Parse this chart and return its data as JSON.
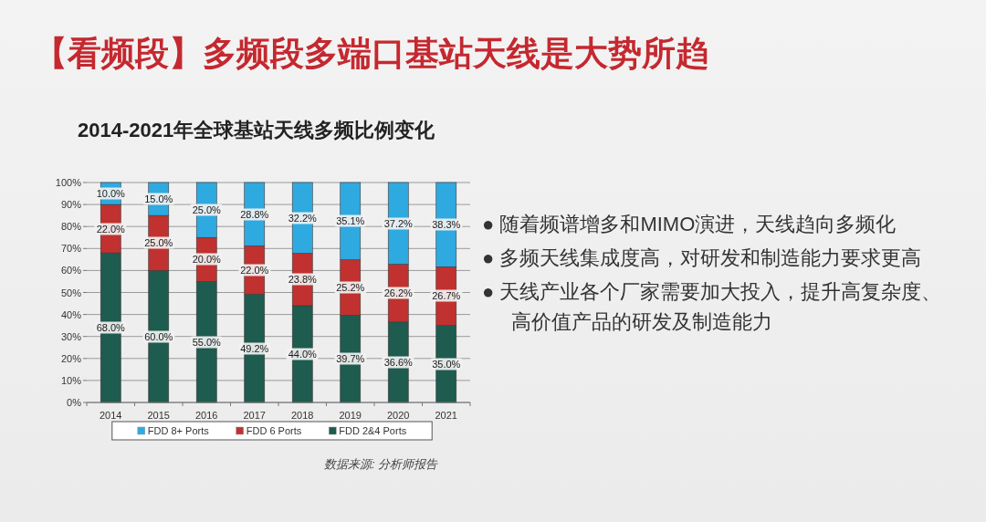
{
  "chart_data": {
    "type": "bar",
    "stacked": true,
    "title": "【看频段】多频段多端口基站天线是大势所趋",
    "subtitle": "2014-2021年全球基站天线多频比例变化",
    "categories": [
      "2014",
      "2015",
      "2016",
      "2017",
      "2018",
      "2019",
      "2020",
      "2021"
    ],
    "series": [
      {
        "name": "FDD 2&4 Ports",
        "color": "#1d5c4f",
        "values": [
          68.0,
          60.0,
          55.0,
          49.2,
          44.0,
          39.7,
          36.6,
          35.0
        ],
        "value_labels": [
          "68.0%",
          "60.0%",
          "55.0%",
          "49.2%",
          "44.0%",
          "39.7%",
          "36.6%",
          "35.0%"
        ]
      },
      {
        "name": "FDD 6 Ports",
        "color": "#c1312f",
        "values": [
          22.0,
          25.0,
          20.0,
          22.0,
          23.8,
          25.2,
          26.2,
          26.7
        ],
        "value_labels": [
          "22.0%",
          "25.0%",
          "20.0%",
          "22.0%",
          "23.8%",
          "25.2%",
          "26.2%",
          "26.7%"
        ]
      },
      {
        "name": "FDD 8+ Ports",
        "color": "#2eaae1",
        "values": [
          10.0,
          15.0,
          25.0,
          28.8,
          32.2,
          35.1,
          37.2,
          38.3
        ],
        "value_labels": [
          "10.0%",
          "15.0%",
          "25.0%",
          "28.8%",
          "32.2%",
          "35.1%",
          "37.2%",
          "38.3%"
        ]
      }
    ],
    "ylim": [
      0,
      100
    ],
    "yticks": [
      {
        "value": 0,
        "label": "0%"
      },
      {
        "value": 10,
        "label": "10%"
      },
      {
        "value": 20,
        "label": "20%"
      },
      {
        "value": 30,
        "label": "30%"
      },
      {
        "value": 40,
        "label": "40%"
      },
      {
        "value": 50,
        "label": "50%"
      },
      {
        "value": 60,
        "label": "60%"
      },
      {
        "value": 70,
        "label": "70%"
      },
      {
        "value": 80,
        "label": "80%"
      },
      {
        "value": 90,
        "label": "90%"
      },
      {
        "value": 100,
        "label": "100%"
      }
    ],
    "grid": "y",
    "legend": "bottom",
    "annotations": [
      "● 随着频谱增多和MIMO演进，天线趋向多频化",
      "● 多频天线集成度高，对研发和制造能力要求更高",
      "● 天线产业各个厂家需要加大投入，提升高复杂度、高价值产品的研发及制造能力",
      "数据来源: 分析师报告"
    ]
  }
}
